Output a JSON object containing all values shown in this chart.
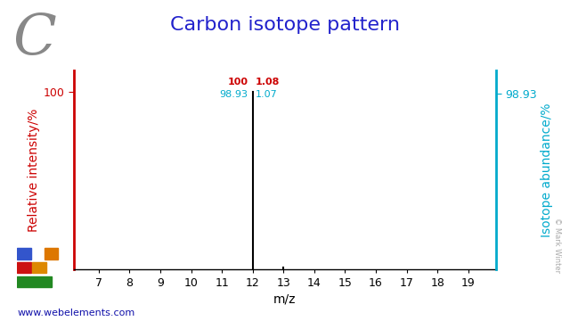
{
  "title": "Carbon isotope pattern",
  "element_symbol": "C",
  "xlabel": "m/z",
  "ylabel_left": "Relative intensity/%",
  "ylabel_right": "Isotope abundance/%",
  "background_color": "#ffffff",
  "title_color": "#2222cc",
  "left_axis_color": "#cc0000",
  "right_axis_color": "#00aacc",
  "bar_color": "#000000",
  "xlim": [
    6.2,
    19.9
  ],
  "ylim": [
    0,
    112
  ],
  "xticks": [
    7,
    8,
    9,
    10,
    11,
    12,
    13,
    14,
    15,
    16,
    17,
    18,
    19
  ],
  "bars": [
    {
      "mz": 12,
      "relative_intensity": 100,
      "abundance": 98.93
    },
    {
      "mz": 13,
      "relative_intensity": 1.08,
      "abundance": 1.07
    }
  ],
  "watermark": "© Mark Winter",
  "website": "www.webelements.com",
  "website_color": "#1111aa",
  "element_font_size": 46,
  "title_font_size": 16,
  "axis_label_font_size": 10,
  "tick_font_size": 9,
  "annotation_font_size": 8,
  "right_ytick": 98.93,
  "left_ytick": 100
}
